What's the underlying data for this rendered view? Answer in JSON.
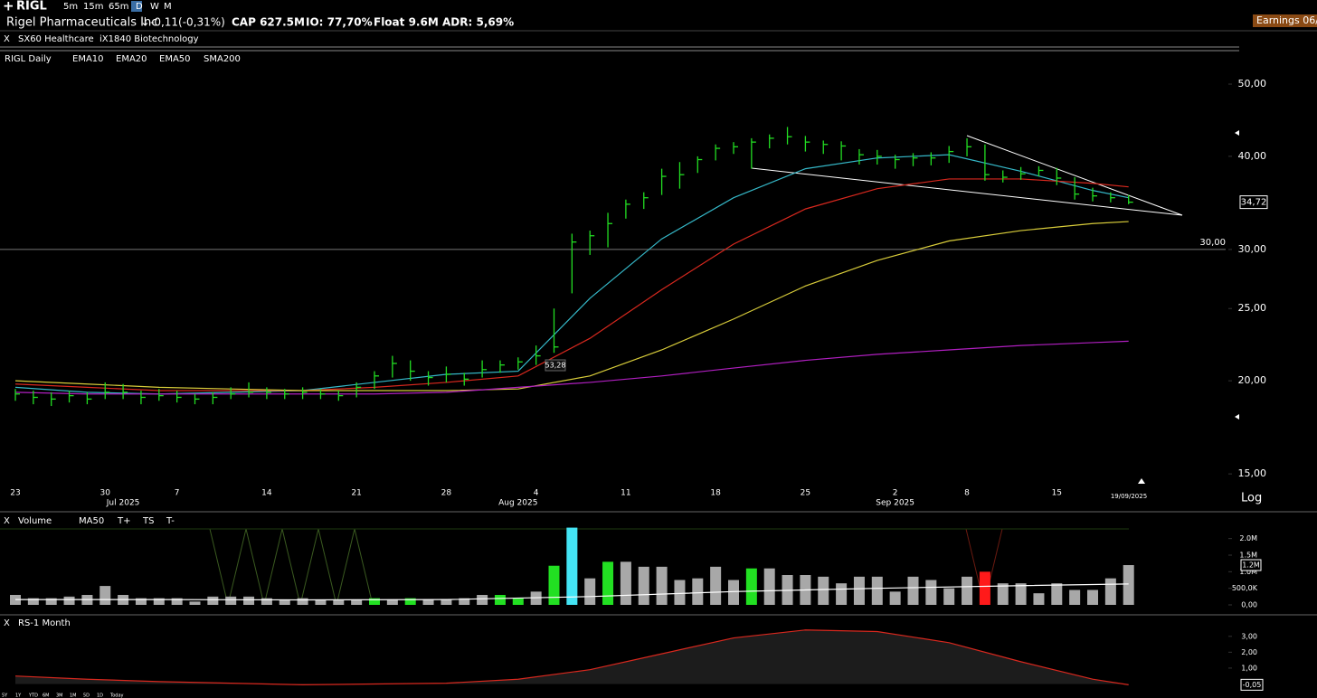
{
  "header": {
    "symbol": "RIGL",
    "intervals": [
      "5m",
      "15m",
      "65m",
      "D",
      "W",
      "M"
    ],
    "company": "Rigel Pharmaceuticals Inc",
    "change": "-0,11(-0,31%)",
    "cap": "CAP 627.5M",
    "io": "IO: 77,70%",
    "float": "Float 9.6M",
    "adr": "ADR: 5,69%",
    "earnings": "Earnings 06/"
  },
  "groups": {
    "close": "X",
    "sector": "SX60 Healthcare",
    "industry": "iX1840 Biotechnology"
  },
  "range_buttons": [
    "5Y",
    "1Y",
    "YTD",
    "6M",
    "3M",
    "1M",
    "5D",
    "1D",
    "Today"
  ],
  "chart_data": [
    {
      "type": "ohlc",
      "title": "RIGL Daily",
      "color": "#22dd22",
      "log_scale": true,
      "grid": false,
      "categories": [
        "23",
        null,
        null,
        null,
        null,
        "30",
        null,
        null,
        null,
        "7",
        null,
        null,
        null,
        null,
        "14",
        null,
        null,
        null,
        null,
        "21",
        null,
        null,
        null,
        null,
        "28",
        null,
        null,
        null,
        null,
        "4",
        null,
        null,
        null,
        null,
        "11",
        null,
        null,
        null,
        null,
        "18",
        null,
        null,
        null,
        null,
        "25",
        null,
        null,
        null,
        null,
        "2",
        null,
        null,
        null,
        "8",
        null,
        null,
        null,
        null,
        "15",
        null,
        null,
        null,
        null
      ],
      "months": [
        null,
        null,
        null,
        null,
        null,
        null,
        "Jul 2025",
        null,
        null,
        null,
        null,
        null,
        null,
        null,
        null,
        null,
        null,
        null,
        null,
        null,
        null,
        null,
        null,
        null,
        null,
        null,
        null,
        null,
        "Aug 2025",
        null,
        null,
        null,
        null,
        null,
        null,
        null,
        null,
        null,
        null,
        null,
        null,
        null,
        null,
        null,
        null,
        null,
        null,
        null,
        null,
        "Sep 2025",
        null,
        null,
        null,
        null,
        null,
        null,
        null,
        null,
        null,
        null,
        null,
        null,
        null
      ],
      "high": [
        19.5,
        19.4,
        19.3,
        19.4,
        19.3,
        19.9,
        19.8,
        19.4,
        19.5,
        19.4,
        19.2,
        19.3,
        19.6,
        19.9,
        19.6,
        19.5,
        19.6,
        19.5,
        19.4,
        19.9,
        20.6,
        21.6,
        21.3,
        20.6,
        20.9,
        20.5,
        21.3,
        21.3,
        21.5,
        22.3,
        25.0,
        31.5,
        31.8,
        33.6,
        35.0,
        35.8,
        38.5,
        39.3,
        40.0,
        41.5,
        41.8,
        42.3,
        42.8,
        43.8,
        42.6,
        42.0,
        41.9,
        40.9,
        40.8,
        40.2,
        40.4,
        40.5,
        41.3,
        42.3,
        41.5,
        38.3,
        38.7,
        38.8,
        38.6,
        37.5,
        36.3,
        35.8,
        35.5
      ],
      "low": [
        18.8,
        18.6,
        18.5,
        18.7,
        18.6,
        18.9,
        18.9,
        18.6,
        18.8,
        18.7,
        18.6,
        18.6,
        18.9,
        19.0,
        18.9,
        18.9,
        18.9,
        18.9,
        18.8,
        19.0,
        19.5,
        20.2,
        20.0,
        19.7,
        19.9,
        19.7,
        20.2,
        20.5,
        20.7,
        21.0,
        21.8,
        26.2,
        29.5,
        30.2,
        33.0,
        34.0,
        35.5,
        36.2,
        38.0,
        39.5,
        40.3,
        38.5,
        41.0,
        41.5,
        40.6,
        40.3,
        39.5,
        39.0,
        39.0,
        38.5,
        38.8,
        38.9,
        39.2,
        40.0,
        37.1,
        36.9,
        37.2,
        37.6,
        36.6,
        35.0,
        34.8,
        34.7,
        34.5
      ],
      "close": [
        19.2,
        19.0,
        18.9,
        19.1,
        18.9,
        19.3,
        19.3,
        19.0,
        19.1,
        19.0,
        18.9,
        19.0,
        19.2,
        19.3,
        19.3,
        19.2,
        19.3,
        19.2,
        19.1,
        19.6,
        20.3,
        21.1,
        20.6,
        20.2,
        20.4,
        20.1,
        20.7,
        21.0,
        21.2,
        21.6,
        22.2,
        30.7,
        31.3,
        32.5,
        34.5,
        35.2,
        37.6,
        37.8,
        39.6,
        41.0,
        41.2,
        41.8,
        42.3,
        42.5,
        41.8,
        41.5,
        41.3,
        40.2,
        40.0,
        39.6,
        39.8,
        39.8,
        40.6,
        41.2,
        37.8,
        37.5,
        37.9,
        38.3,
        37.4,
        35.6,
        35.4,
        35.2,
        34.72
      ],
      "ylim": [
        14.35,
        55.6
      ],
      "yticks": [
        {
          "value": 50,
          "label": "50,00"
        },
        {
          "value": 40,
          "label": "40,00"
        },
        {
          "value": 30,
          "label": "30,00"
        },
        {
          "value": 25,
          "label": "25,00"
        },
        {
          "value": 20,
          "label": "20,00"
        },
        {
          "value": 15,
          "label": "15,00"
        }
      ],
      "overlays": [
        {
          "name": "EMA10",
          "color": "#35b8c8",
          "x": [
            0,
            4,
            8,
            12,
            16,
            20,
            24,
            28,
            32,
            36,
            40,
            44,
            48,
            52,
            56,
            60,
            62
          ],
          "values": [
            19.6,
            19.3,
            19.2,
            19.3,
            19.4,
            19.9,
            20.4,
            20.6,
            25.8,
            31,
            35.2,
            38.5,
            39.8,
            40.2,
            38.2,
            36,
            35.2
          ]
        },
        {
          "name": "EMA20",
          "color": "#d8281e",
          "x": [
            0,
            4,
            8,
            12,
            16,
            20,
            24,
            28,
            32,
            36,
            40,
            44,
            48,
            52,
            56,
            60,
            62
          ],
          "values": [
            19.8,
            19.6,
            19.4,
            19.4,
            19.4,
            19.6,
            19.9,
            20.3,
            22.8,
            26.5,
            30.5,
            34,
            36.2,
            37.3,
            37.3,
            36.8,
            36.4
          ]
        },
        {
          "name": "EMA50",
          "color": "#d8cc3a",
          "x": [
            0,
            4,
            8,
            12,
            16,
            20,
            24,
            28,
            32,
            36,
            40,
            44,
            48,
            52,
            56,
            60,
            62
          ],
          "values": [
            20.0,
            19.8,
            19.6,
            19.5,
            19.4,
            19.4,
            19.4,
            19.5,
            20.3,
            22,
            24.2,
            26.8,
            29,
            30.8,
            31.8,
            32.5,
            32.7
          ]
        },
        {
          "name": "SMA200",
          "color": "#b01fc0",
          "x": [
            0,
            4,
            8,
            12,
            16,
            20,
            24,
            28,
            32,
            36,
            40,
            44,
            48,
            52,
            56,
            60,
            62
          ],
          "values": [
            19.3,
            19.2,
            19.2,
            19.2,
            19.2,
            19.2,
            19.3,
            19.6,
            19.9,
            20.3,
            20.8,
            21.3,
            21.7,
            22,
            22.3,
            22.5,
            22.6
          ]
        }
      ],
      "level": {
        "value": 30,
        "label": "30,00"
      },
      "last_price": {
        "value": 34.72,
        "label": "34,72"
      },
      "annotation": "53,28",
      "date_label": "19/09/2025",
      "scale_label": "Log"
    },
    {
      "type": "bar",
      "title": "Volume",
      "close_label": "X",
      "signals": [
        "T+",
        "TS",
        "T-"
      ],
      "values": [
        300000,
        200000,
        200000,
        250000,
        300000,
        570000,
        300000,
        200000,
        200000,
        200000,
        100000,
        250000,
        250000,
        250000,
        200000,
        150000,
        200000,
        150000,
        150000,
        150000,
        200000,
        150000,
        200000,
        150000,
        150000,
        200000,
        300000,
        300000,
        200000,
        400000,
        1180000,
        2330000,
        800000,
        1300000,
        1300000,
        1150000,
        1150000,
        750000,
        800000,
        1150000,
        750000,
        1100000,
        1100000,
        900000,
        900000,
        850000,
        650000,
        850000,
        850000,
        400000,
        850000,
        750000,
        500000,
        850000,
        1000000,
        650000,
        650000,
        350000,
        650000,
        450000,
        450000,
        800000,
        1200000
      ],
      "colors": [
        "#a8a8a8",
        "#a8a8a8",
        "#a8a8a8",
        "#a8a8a8",
        "#a8a8a8",
        "#a8a8a8",
        "#a8a8a8",
        "#a8a8a8",
        "#a8a8a8",
        "#a8a8a8",
        "#a8a8a8",
        "#a8a8a8",
        "#a8a8a8",
        "#a8a8a8",
        "#a8a8a8",
        "#a8a8a8",
        "#a8a8a8",
        "#a8a8a8",
        "#a8a8a8",
        "#a8a8a8",
        "#22e022",
        "#a8a8a8",
        "#22e022",
        "#a8a8a8",
        "#a8a8a8",
        "#a8a8a8",
        "#a8a8a8",
        "#22e022",
        "#22e022",
        "#a8a8a8",
        "#22e022",
        "#44e4f4",
        "#a8a8a8",
        "#22e022",
        "#a8a8a8",
        "#a8a8a8",
        "#a8a8a8",
        "#a8a8a8",
        "#a8a8a8",
        "#a8a8a8",
        "#a8a8a8",
        "#22e022",
        "#a8a8a8",
        "#a8a8a8",
        "#a8a8a8",
        "#a8a8a8",
        "#a8a8a8",
        "#a8a8a8",
        "#a8a8a8",
        "#a8a8a8",
        "#a8a8a8",
        "#a8a8a8",
        "#a8a8a8",
        "#a8a8a8",
        "#ff1a1a",
        "#a8a8a8",
        "#a8a8a8",
        "#a8a8a8",
        "#a8a8a8",
        "#a8a8a8",
        "#a8a8a8",
        "#a8a8a8",
        "#a8a8a8"
      ],
      "ylim": [
        0,
        2400000
      ],
      "yticks": [
        {
          "value": 0,
          "label": "0,00"
        },
        {
          "value": 500000,
          "label": "500,0K"
        },
        {
          "value": 1000000,
          "label": "1.0M"
        },
        {
          "value": 1500000,
          "label": "1.5M"
        },
        {
          "value": 2000000,
          "label": "2.0M"
        }
      ],
      "ma": {
        "name": "MA50",
        "color": "#ffffff",
        "x": [
          0,
          8,
          16,
          24,
          32,
          40,
          48,
          56,
          62
        ],
        "values": [
          160000,
          160000,
          150000,
          160000,
          250000,
          400000,
          500000,
          580000,
          630000
        ]
      },
      "last": {
        "value": 1200000,
        "label": "1.2M"
      }
    },
    {
      "type": "area",
      "title": "RS-1 Month",
      "close_label": "X",
      "color": "#d8281e",
      "x": [
        0,
        4,
        8,
        12,
        16,
        20,
        24,
        28,
        32,
        36,
        40,
        44,
        48,
        52,
        56,
        60,
        62
      ],
      "values": [
        0.5,
        0.3,
        0.15,
        0.05,
        -0.05,
        0,
        0.05,
        0.3,
        0.9,
        1.9,
        2.9,
        3.4,
        3.3,
        2.6,
        1.4,
        0.3,
        -0.05
      ],
      "ylim": [
        -0.2,
        3.5
      ],
      "yticks": [
        {
          "value": 3,
          "label": "3,00"
        },
        {
          "value": 2,
          "label": "2,00"
        },
        {
          "value": 1,
          "label": "1,00"
        }
      ],
      "last": {
        "value": -0.05,
        "label": "-0,05"
      }
    }
  ]
}
